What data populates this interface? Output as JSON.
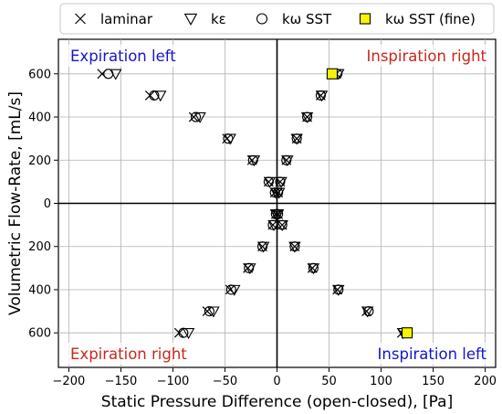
{
  "chart_data": {
    "type": "scatter",
    "title": "",
    "xlabel": "Static Pressure Difference (open-closed), [Pa]",
    "ylabel": "Volumetric Flow-Rate, [mL/s]",
    "xlim": [
      -210,
      210
    ],
    "ylim": [
      -760,
      760
    ],
    "xticks": [
      -200,
      -150,
      -100,
      -50,
      0,
      50,
      100,
      150,
      200
    ],
    "yticks": [
      -600,
      -400,
      -200,
      0,
      200,
      400,
      600
    ],
    "xtick_labels": [
      "−200",
      "−150",
      "−100",
      "−50",
      "0",
      "50",
      "100",
      "150",
      "200"
    ],
    "ytick_labels": [
      "600",
      "400",
      "200",
      "0",
      "200",
      "400",
      "600"
    ],
    "grid": true,
    "legend_position": "top, outside plot",
    "quadrant_labels": [
      {
        "text": "Expiration left",
        "color": "#1515c8",
        "quadrant": "top-left"
      },
      {
        "text": "Inspiration right",
        "color": "#c8281e",
        "quadrant": "top-right"
      },
      {
        "text": "Expiration right",
        "color": "#c8281e",
        "quadrant": "bottom-left"
      },
      {
        "text": "Inspiration left",
        "color": "#1515c8",
        "quadrant": "bottom-right"
      }
    ],
    "series": [
      {
        "name": "laminar",
        "marker": "x",
        "points": [
          [
            -168,
            600
          ],
          [
            -122,
            500
          ],
          [
            -80,
            400
          ],
          [
            -48,
            300
          ],
          [
            -24,
            200
          ],
          [
            -8,
            100
          ],
          [
            -2,
            50
          ],
          [
            57,
            600
          ],
          [
            42,
            500
          ],
          [
            29,
            400
          ],
          [
            19,
            300
          ],
          [
            9,
            200
          ],
          [
            3,
            100
          ],
          [
            1,
            50
          ],
          [
            -94,
            -600
          ],
          [
            -67,
            -500
          ],
          [
            -45,
            -400
          ],
          [
            -28,
            -300
          ],
          [
            -14,
            -200
          ],
          [
            -4,
            -100
          ],
          [
            -1,
            -50
          ],
          [
            120,
            -600
          ],
          [
            86,
            -500
          ],
          [
            58,
            -400
          ],
          [
            34,
            -300
          ],
          [
            17,
            -200
          ],
          [
            5,
            -100
          ],
          [
            1,
            -50
          ]
        ]
      },
      {
        "name": "kε",
        "marker": "triangle-down",
        "points": [
          [
            -155,
            600
          ],
          [
            -112,
            500
          ],
          [
            -74,
            400
          ],
          [
            -45,
            300
          ],
          [
            -22,
            200
          ],
          [
            -7,
            100
          ],
          [
            -1,
            50
          ],
          [
            59,
            600
          ],
          [
            43,
            500
          ],
          [
            29,
            400
          ],
          [
            19,
            300
          ],
          [
            10,
            200
          ],
          [
            4,
            100
          ],
          [
            2,
            50
          ],
          [
            -85,
            -600
          ],
          [
            -61,
            -500
          ],
          [
            -41,
            -400
          ],
          [
            -26,
            -300
          ],
          [
            -13,
            -200
          ],
          [
            -3,
            -100
          ],
          [
            -1,
            -50
          ],
          [
            121,
            -600
          ],
          [
            87,
            -500
          ],
          [
            59,
            -400
          ],
          [
            35,
            -300
          ],
          [
            17,
            -200
          ],
          [
            5,
            -100
          ],
          [
            1,
            -50
          ]
        ]
      },
      {
        "name": "kω SST",
        "marker": "circle",
        "points": [
          [
            -162,
            600
          ],
          [
            -118,
            500
          ],
          [
            -78,
            400
          ],
          [
            -47,
            300
          ],
          [
            -23,
            200
          ],
          [
            -8,
            100
          ],
          [
            -2,
            50
          ],
          [
            58,
            600
          ],
          [
            42,
            500
          ],
          [
            29,
            400
          ],
          [
            19,
            300
          ],
          [
            9,
            200
          ],
          [
            3,
            100
          ],
          [
            1,
            50
          ],
          [
            -90,
            -600
          ],
          [
            -65,
            -500
          ],
          [
            -44,
            -400
          ],
          [
            -27,
            -300
          ],
          [
            -14,
            -200
          ],
          [
            -4,
            -100
          ],
          [
            -1,
            -50
          ],
          [
            124,
            -600
          ],
          [
            88,
            -500
          ],
          [
            59,
            -400
          ],
          [
            35,
            -300
          ],
          [
            17,
            -200
          ],
          [
            5,
            -100
          ],
          [
            1,
            -50
          ]
        ]
      },
      {
        "name": "kω SST (fine)",
        "marker": "square",
        "color": "#f5f500",
        "points": [
          [
            53,
            600
          ],
          [
            125,
            -600
          ]
        ]
      }
    ]
  }
}
